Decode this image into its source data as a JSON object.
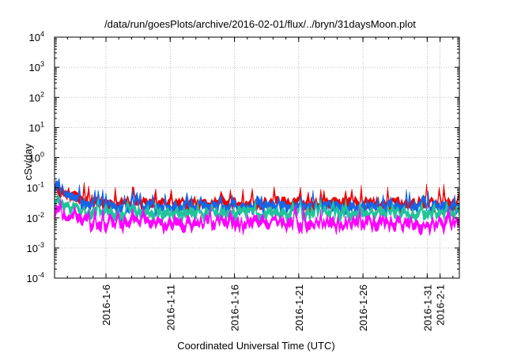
{
  "chart_data": {
    "type": "area",
    "title": "/data/run/goesPlots/archive/2016-02-01/flux/../bryn/31daysMoon.plot",
    "xlabel": "Coordinated Universal Time (UTC)",
    "ylabel": "cSv/day",
    "y_scale": "log",
    "grid": "dotted",
    "x_range": [
      "2016-01-02",
      "2016-02-02T12:00"
    ],
    "y_range": [
      0.0001,
      10000
    ],
    "x_ticks": [
      "2016-1-6",
      "2016-1-11",
      "2016-1-16",
      "2016-1-21",
      "2016-1-26",
      "2016-1-31",
      "2016-2-1"
    ],
    "y_ticks": [
      {
        "base": "10",
        "exp": "-4",
        "value": 0.0001
      },
      {
        "base": "10",
        "exp": "-3",
        "value": 0.001
      },
      {
        "base": "10",
        "exp": "-2",
        "value": 0.01
      },
      {
        "base": "10",
        "exp": "-1",
        "value": 0.1
      },
      {
        "base": "10",
        "exp": "0",
        "value": 1
      },
      {
        "base": "10",
        "exp": "1",
        "value": 10
      },
      {
        "base": "10",
        "exp": "2",
        "value": 100
      },
      {
        "base": "10",
        "exp": "3",
        "value": 1000
      },
      {
        "base": "10",
        "exp": "4",
        "value": 10000
      }
    ],
    "series": [
      {
        "color": "#ee0000",
        "baseline": 0.038,
        "start": 0.14,
        "spread": 0.3,
        "spike": 2.6
      },
      {
        "color": "#1565e8",
        "baseline": 0.03,
        "start": 0.11,
        "spread": 0.26,
        "spike": 2.2
      },
      {
        "color": "#22c39a",
        "baseline": 0.018,
        "start": 0.05,
        "spread": 0.3,
        "spike": 1.8
      },
      {
        "color": "#ff00ff",
        "baseline": 0.0085,
        "start": 0.018,
        "spread": 0.4,
        "spike": 2.0
      }
    ]
  }
}
